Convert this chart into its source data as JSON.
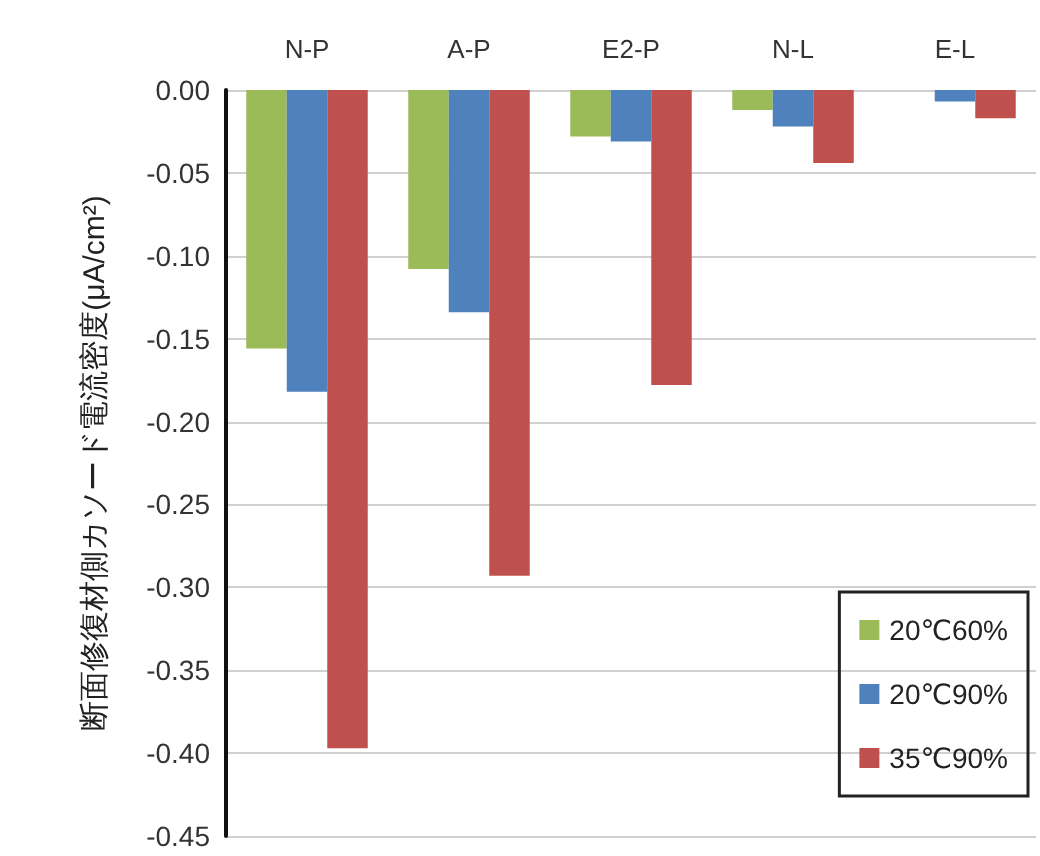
{
  "chart_data": {
    "type": "bar",
    "ylabel": "断面修復材側カソード電流密度(μA/cm²)",
    "categories": [
      "N-P",
      "A-P",
      "E2-P",
      "N-L",
      "E-L"
    ],
    "series": [
      {
        "name": "20℃60%",
        "color": "#9bbb59",
        "values": [
          -0.156,
          -0.108,
          -0.028,
          -0.012,
          0
        ]
      },
      {
        "name": "20℃90%",
        "color": "#4f81bd",
        "values": [
          -0.182,
          -0.134,
          -0.031,
          -0.022,
          -0.007
        ]
      },
      {
        "name": "35℃90%",
        "color": "#c0504d",
        "values": [
          -0.397,
          -0.293,
          -0.178,
          -0.044,
          -0.017
        ]
      }
    ],
    "ylim": [
      -0.45,
      0
    ],
    "yticks": [
      {
        "value": 0,
        "label": "0.00"
      },
      {
        "value": -0.05,
        "label": "-0.05"
      },
      {
        "value": -0.1,
        "label": "-0.10"
      },
      {
        "value": -0.15,
        "label": "-0.15"
      },
      {
        "value": -0.2,
        "label": "-0.20"
      },
      {
        "value": -0.25,
        "label": "-0.25"
      },
      {
        "value": -0.3,
        "label": "-0.30"
      },
      {
        "value": -0.35,
        "label": "-0.35"
      },
      {
        "value": -0.4,
        "label": "-0.40"
      },
      {
        "value": -0.45,
        "label": "-0.45"
      }
    ],
    "grid": "y",
    "legend": "bottom right"
  }
}
